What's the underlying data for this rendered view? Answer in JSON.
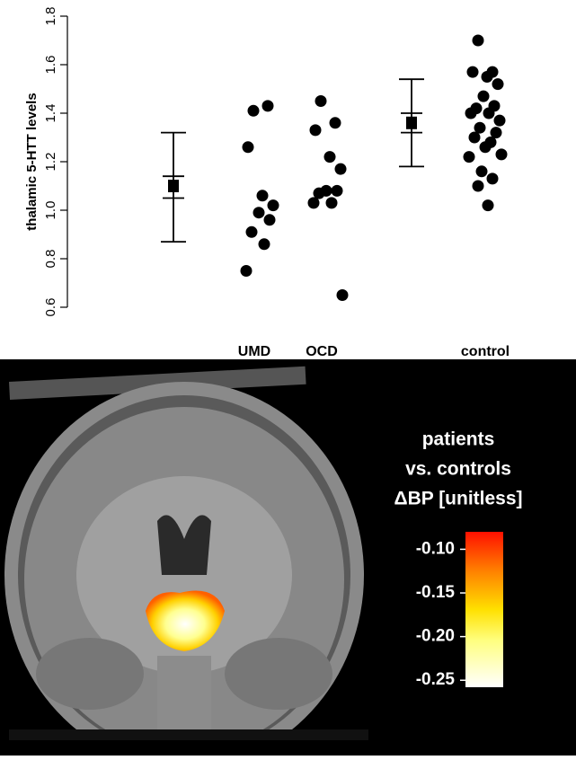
{
  "chart_data": [
    {
      "type": "strip",
      "ylabel": "thalamic 5-HTT levels",
      "ylim": [
        0.6,
        1.8
      ],
      "yticks": [
        0.6,
        0.8,
        {
          "value": 1,
          "label": "1.0"
        },
        1.2,
        1.4,
        1.6,
        1.8
      ],
      "groups": [
        {
          "name": "UMD",
          "values": [
            1.41,
            1.43,
            1.26,
            1.06,
            1.02,
            0.99,
            0.96,
            0.91,
            0.86,
            0.75
          ]
        },
        {
          "name": "OCD",
          "values": [
            1.45,
            1.36,
            1.33,
            1.22,
            1.17,
            1.08,
            1.08,
            1.07,
            1.03,
            1.03,
            0.65
          ]
        },
        {
          "name": "control",
          "values": [
            1.7,
            1.57,
            1.57,
            1.55,
            1.52,
            1.47,
            1.43,
            1.42,
            1.4,
            1.4,
            1.37,
            1.34,
            1.32,
            1.3,
            1.28,
            1.26,
            1.23,
            1.22,
            1.16,
            1.13,
            1.1,
            1.02
          ]
        }
      ],
      "summaries": [
        {
          "mean": 1.1,
          "se": [
            1.05,
            1.14
          ],
          "sd": [
            0.87,
            1.32
          ]
        },
        {
          "mean": 1.36,
          "se": [
            1.32,
            1.4
          ],
          "sd": [
            1.18,
            1.54
          ]
        }
      ]
    },
    {
      "type": "colorbar",
      "title": [
        "patients",
        "vs. controls",
        "ΔBP [unitless]"
      ],
      "clim": [
        -0.258,
        -0.08
      ],
      "cticks": [
        {
          "value": -0.1,
          "label": "-0.10"
        },
        -0.15,
        {
          "value": -0.2,
          "label": "-0.20"
        },
        -0.25
      ]
    }
  ]
}
